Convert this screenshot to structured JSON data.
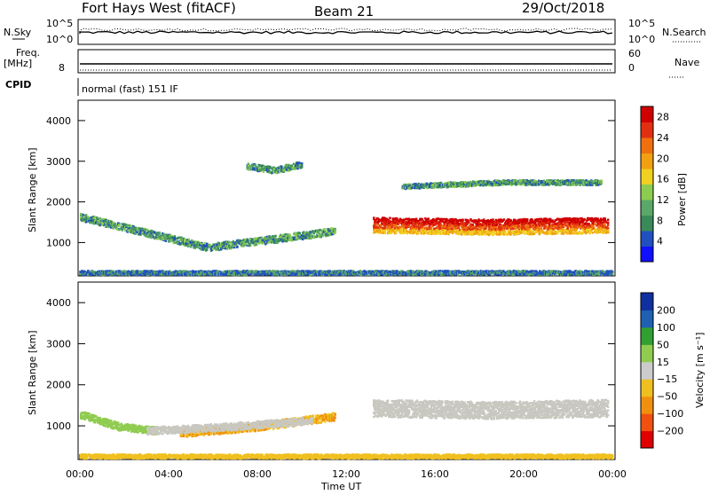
{
  "header": {
    "radar": "Fort Hays West (fitACF)",
    "beam": "Beam 21",
    "date": "29/Oct/2018"
  },
  "strips": {
    "noise_left": "N.Sky",
    "noise_right": "N.Search",
    "noise_ticks": [
      "10^5",
      "10^0"
    ],
    "freq_left_1": "Freq.",
    "freq_left_2": "[MHz]",
    "freq_ticks": [
      "8"
    ],
    "nave_label": "Nave",
    "nave_ticks": [
      "60",
      "0"
    ],
    "cpid_label": "CPID",
    "cpid_text": "normal (fast) 151 IF"
  },
  "colors": {
    "power": [
      "#1010ff",
      "#2050c0",
      "#3a8a5a",
      "#5aa868",
      "#8ccc50",
      "#f0d020",
      "#f0a010",
      "#f07010",
      "#e03010",
      "#d00000"
    ],
    "velocity": [
      "#e00000",
      "#f05010",
      "#f09010",
      "#f0c020",
      "#cccccc",
      "#90cc50",
      "#30a030",
      "#2060b0",
      "#1030a0"
    ],
    "scatter_grey": "#c8c8c0"
  },
  "chart_data": [
    {
      "type": "heatmap",
      "panel": "power",
      "xlabel": "",
      "ylabel": "Slant Range [km]",
      "x_ticks": [
        "00:00",
        "04:00",
        "08:00",
        "12:00",
        "16:00",
        "20:00",
        "00:00"
      ],
      "xlim_hours": [
        0,
        24
      ],
      "y_ticks": [
        1000,
        2000,
        3000,
        4000
      ],
      "ylim_km": [
        180,
        4500
      ],
      "colorbar": {
        "label": "Power [dB]",
        "ticks": [
          4,
          8,
          12,
          16,
          20,
          24,
          28
        ],
        "range": [
          0,
          30
        ]
      },
      "bands": [
        {
          "name": "early F-region",
          "t": [
            0,
            11.5
          ],
          "range_km": [
            1650,
            900,
            1300
          ],
          "width_km": 180
        },
        {
          "name": "strong F-region",
          "t": [
            13.2,
            23.8
          ],
          "range_km": [
            1450,
            1400,
            1450
          ],
          "width_km": 380
        },
        {
          "name": "ground/E",
          "t": [
            0,
            24
          ],
          "range_km": [
            280,
            280,
            280
          ],
          "width_km": 100
        },
        {
          "name": "upper echoes",
          "t": [
            14.5,
            23.5
          ],
          "range_km": [
            2400,
            2500,
            2500
          ],
          "width_km": 120
        },
        {
          "name": "sparse",
          "t": [
            7.5,
            10.0
          ],
          "range_km": [
            2900,
            2800,
            2950
          ],
          "width_km": 160
        }
      ]
    },
    {
      "type": "heatmap",
      "panel": "velocity",
      "xlabel": "Time UT",
      "ylabel": "Slant Range [km]",
      "x_ticks": [
        "00:00",
        "04:00",
        "08:00",
        "12:00",
        "16:00",
        "20:00",
        "00:00"
      ],
      "xlim_hours": [
        0,
        24
      ],
      "y_ticks": [
        1000,
        2000,
        3000,
        4000
      ],
      "ylim_km": [
        180,
        4500
      ],
      "colorbar": {
        "label": "Velocity [m s⁻¹]",
        "ticks": [
          "200",
          "100",
          "50",
          "15",
          "−15",
          "−50",
          "−100",
          "−200"
        ]
      },
      "bands": [
        {
          "name": "early green",
          "t": [
            0,
            3.5
          ],
          "range_km": [
            1300,
            1000,
            900
          ],
          "width_km": 180
        },
        {
          "name": "orange",
          "t": [
            4.5,
            11.5
          ],
          "range_km": [
            850,
            1000,
            1250
          ],
          "width_km": 200
        },
        {
          "name": "grey",
          "t": [
            3.0,
            10.5
          ],
          "range_km": [
            900,
            1000,
            1150
          ],
          "width_km": 180
        },
        {
          "name": "grey F-region",
          "t": [
            13.2,
            23.8
          ],
          "range_km": [
            1450,
            1400,
            1450
          ],
          "width_km": 420
        },
        {
          "name": "ground orange",
          "t": [
            0,
            24
          ],
          "range_km": [
            280,
            280,
            280
          ],
          "width_km": 100
        }
      ]
    }
  ]
}
